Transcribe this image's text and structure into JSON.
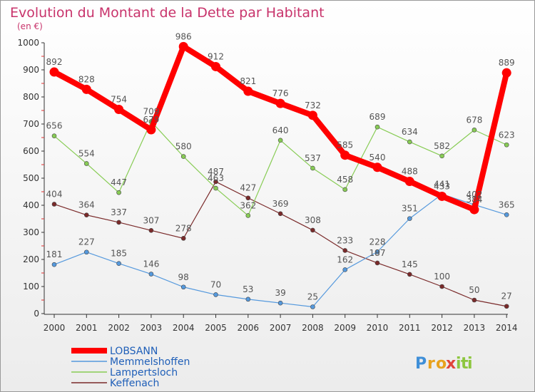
{
  "chart_data": {
    "type": "line",
    "title": "Evolution du Montant de la Dette par Habitant",
    "subtitle": "(en €)",
    "x": [
      "2000",
      "2001",
      "2002",
      "2003",
      "2004",
      "2005",
      "2006",
      "2007",
      "2008",
      "2009",
      "2010",
      "2011",
      "2012",
      "2013",
      "2014"
    ],
    "ylim": [
      0,
      1000
    ],
    "yticks": [
      0,
      100,
      200,
      300,
      400,
      500,
      600,
      700,
      800,
      900,
      1000
    ],
    "grid": false,
    "legend_position": "bottom-left",
    "series": [
      {
        "name": "LOBSANN",
        "color": "#ff0000",
        "values": [
          892,
          828,
          754,
          679,
          986,
          912,
          821,
          776,
          732,
          585,
          540,
          488,
          433,
          384,
          889
        ],
        "labels": [
          "892",
          "828",
          "754",
          "679",
          "986",
          "912",
          "821",
          "776",
          "732",
          "585",
          "540",
          "488",
          "433",
          "384",
          "889"
        ]
      },
      {
        "name": "Memmelshoffen",
        "color": "#5599dd",
        "values": [
          181,
          227,
          185,
          146,
          98,
          70,
          53,
          39,
          25,
          162,
          228,
          351,
          441,
          402,
          365
        ],
        "labels": [
          "181",
          "227",
          "185",
          "146",
          "98",
          "70",
          "53",
          "39",
          "25",
          "162",
          "228",
          "351",
          "441",
          "402",
          "365"
        ]
      },
      {
        "name": "Lampertsloch",
        "color": "#88cc55",
        "values": [
          656,
          554,
          447,
          709,
          580,
          463,
          362,
          640,
          537,
          458,
          689,
          634,
          582,
          678,
          623
        ],
        "labels": [
          "656",
          "554",
          "447",
          "709",
          "580",
          "463",
          "362",
          "640",
          "537",
          "458",
          "689",
          "634",
          "582",
          "678",
          "623"
        ]
      },
      {
        "name": "Keffenach",
        "color": "#7a2a2a",
        "values": [
          404,
          364,
          337,
          307,
          278,
          487,
          427,
          369,
          308,
          233,
          187,
          145,
          100,
          50,
          27
        ],
        "labels": [
          "404",
          "364",
          "337",
          "307",
          "278",
          "487",
          "427",
          "369",
          "308",
          "233",
          "187",
          "145",
          "100",
          "50",
          "27"
        ]
      }
    ]
  },
  "logo": {
    "text": "Proxiti",
    "letters": [
      "P",
      "r",
      "o",
      "x",
      "i",
      "t",
      "i"
    ],
    "colors": [
      "#3f8fd8",
      "#e8a21e",
      "#e8a21e",
      "#e0443a",
      "#8dc63f",
      "#8dc63f",
      "#8dc63f"
    ]
  }
}
